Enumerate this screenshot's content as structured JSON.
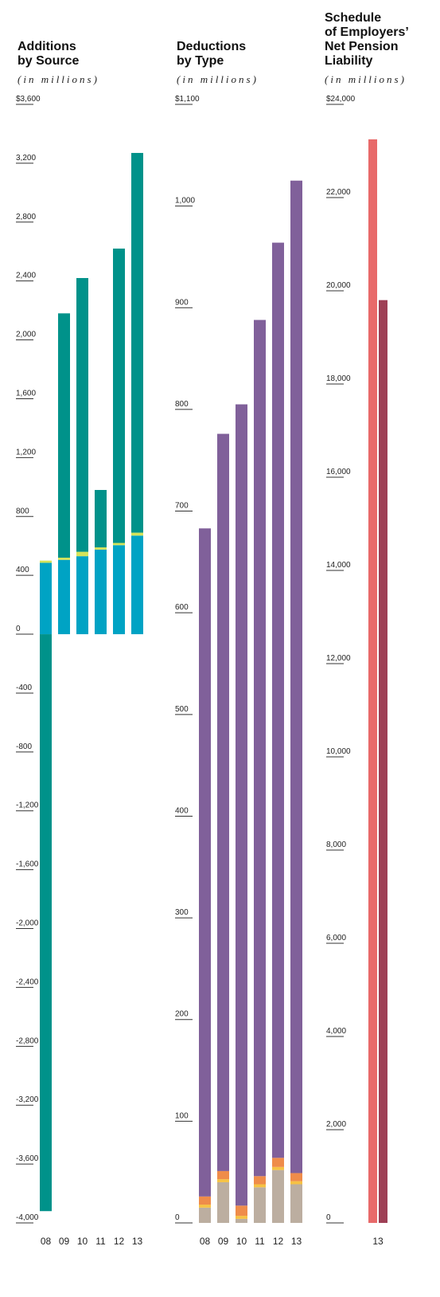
{
  "chart_data": [
    {
      "type": "bar",
      "stacked": true,
      "title": "Additions\nby Source",
      "subtitle": "(in millions)",
      "categories": [
        "08",
        "09",
        "10",
        "11",
        "12",
        "13"
      ],
      "series": [
        {
          "color": "#00a3c4",
          "values": [
            485,
            505,
            530,
            575,
            605,
            670
          ]
        },
        {
          "color": "#d4e35a",
          "values": [
            15,
            15,
            30,
            15,
            15,
            20
          ]
        },
        {
          "color": "#00928a",
          "values": [
            -3920,
            1660,
            1860,
            390,
            2000,
            2580
          ]
        }
      ],
      "ylim": [
        -4000,
        3600
      ],
      "yticks": [
        {
          "value": 3600,
          "label": "$3,600"
        },
        {
          "value": 3200,
          "label": "3,200"
        },
        {
          "value": 2800,
          "label": "2,800"
        },
        {
          "value": 2400,
          "label": "2,400"
        },
        {
          "value": 2000,
          "label": "2,000"
        },
        {
          "value": 1600,
          "label": "1,600"
        },
        {
          "value": 1200,
          "label": "1,200"
        },
        800,
        400,
        0,
        -400,
        -800,
        {
          "value": -1200,
          "label": "-1,200"
        },
        {
          "value": -1600,
          "label": "-1,600"
        },
        {
          "value": -2000,
          "label": "-2,000"
        },
        {
          "value": -2400,
          "label": "-2,400"
        },
        {
          "value": -2800,
          "label": "-2,800"
        },
        {
          "value": -3200,
          "label": "-3,200"
        },
        {
          "value": -3600,
          "label": "-3,600"
        },
        {
          "value": -4000,
          "label": "-4,000"
        }
      ]
    },
    {
      "type": "bar",
      "stacked": true,
      "title": "Deductions\nby Type",
      "subtitle": "(in millions)",
      "categories": [
        "08",
        "09",
        "10",
        "11",
        "12",
        "13"
      ],
      "series": [
        {
          "color": "#bcaea0",
          "values": [
            15,
            40,
            4,
            35,
            52,
            38
          ]
        },
        {
          "color": "#f6c244",
          "values": [
            3,
            3,
            3,
            3,
            3,
            3
          ]
        },
        {
          "color": "#ef8c4a",
          "values": [
            8,
            8,
            10,
            8,
            9,
            8
          ]
        },
        {
          "color": "#80609a",
          "values": [
            657,
            725,
            788,
            842,
            900,
            976
          ]
        }
      ],
      "ylim": [
        0,
        1100
      ],
      "yticks": [
        {
          "value": 1100,
          "label": "$1,100"
        },
        {
          "value": 1000,
          "label": "1,000"
        },
        900,
        800,
        700,
        600,
        500,
        400,
        300,
        200,
        100,
        0
      ]
    },
    {
      "type": "bar",
      "stacked": false,
      "title": "Schedule\nof Employers’\nNet Pension\nLiability",
      "subtitle": "(in millions)",
      "categories": [
        "13"
      ],
      "series": [
        {
          "color": "#e86a6a",
          "values": [
            23250
          ]
        },
        {
          "color": "#9e3f55",
          "values": [
            19800
          ]
        }
      ],
      "ylim": [
        0,
        24000
      ],
      "yticks": [
        {
          "value": 24000,
          "label": "$24,000"
        },
        {
          "value": 22000,
          "label": "22,000"
        },
        {
          "value": 20000,
          "label": "20,000"
        },
        {
          "value": 18000,
          "label": "18,000"
        },
        {
          "value": 16000,
          "label": "16,000"
        },
        {
          "value": 14000,
          "label": "14,000"
        },
        {
          "value": 12000,
          "label": "12,000"
        },
        {
          "value": 10000,
          "label": "10,000"
        },
        {
          "value": 8000,
          "label": "8,000"
        },
        {
          "value": 6000,
          "label": "6,000"
        },
        {
          "value": 4000,
          "label": "4,000"
        },
        {
          "value": 2000,
          "label": "2,000"
        },
        0
      ]
    }
  ]
}
